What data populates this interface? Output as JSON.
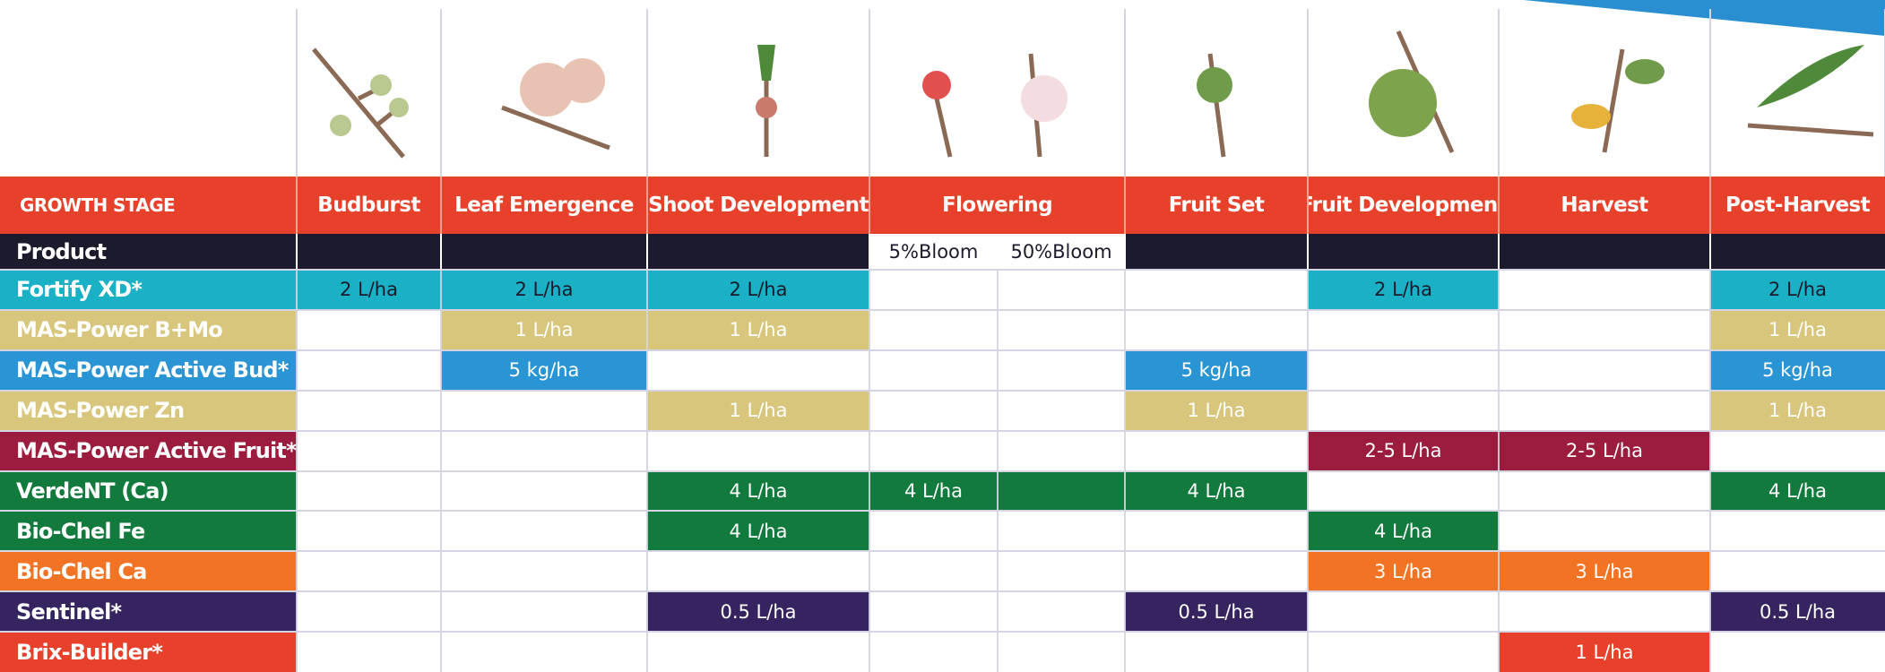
{
  "table": {
    "stage_header": "GROWTH STAGE",
    "stages": [
      "Budburst",
      "Leaf Emergence",
      "Shoot Development",
      "Flowering",
      "Fruit Set",
      "Fruit Development",
      "Harvest",
      "Post-Harvest"
    ],
    "product_header": "Product",
    "flowering_sub": [
      "5%Bloom",
      "50%Bloom"
    ],
    "rows": [
      {
        "name": "Fortify XD*",
        "color": "#1ab1c6",
        "text_color": "#1a1a2a",
        "cells": [
          "2 L/ha",
          "2 L/ha",
          "2 L/ha",
          null,
          null,
          null,
          "2 L/ha",
          null,
          "2 L/ha"
        ],
        "filled": [
          0,
          1,
          2,
          6,
          8
        ]
      },
      {
        "name": "MAS-Power B+Mo",
        "color": "#d7c67c",
        "text_color": "#ffffff",
        "cells": [
          null,
          "1 L/ha",
          "1 L/ha",
          null,
          null,
          null,
          null,
          null,
          "1 L/ha"
        ],
        "filled": [
          1,
          2,
          8
        ]
      },
      {
        "name": "MAS-Power Active Bud*",
        "color": "#2a95d4",
        "text_color": "#ffffff",
        "cells": [
          null,
          "5 kg/ha",
          null,
          null,
          null,
          "5 kg/ha",
          null,
          null,
          "5 kg/ha"
        ],
        "filled": [
          1,
          5,
          8
        ]
      },
      {
        "name": "MAS-Power Zn",
        "color": "#d7c67c",
        "text_color": "#ffffff",
        "cells": [
          null,
          null,
          "1 L/ha",
          null,
          null,
          "1 L/ha",
          null,
          null,
          "1 L/ha"
        ],
        "filled": [
          2,
          5,
          8
        ]
      },
      {
        "name": "MAS-Power Active Fruit*",
        "color": "#9c1c3d",
        "text_color": "#ffffff",
        "cells": [
          null,
          null,
          null,
          null,
          null,
          null,
          "2-5 L/ha",
          "2-5 L/ha",
          null
        ],
        "filled": [
          6,
          7
        ]
      },
      {
        "name": "VerdeNT (Ca)",
        "color": "#137a3d",
        "text_color": "#ffffff",
        "cells": [
          null,
          null,
          "4 L/ha",
          "4 L/ha",
          null,
          "4 L/ha",
          null,
          null,
          "4 L/ha"
        ],
        "filled": [
          2,
          3,
          4,
          5,
          8
        ]
      },
      {
        "name": "Bio-Chel Fe",
        "color": "#137a3d",
        "text_color": "#ffffff",
        "cells": [
          null,
          null,
          "4 L/ha",
          null,
          null,
          null,
          "4 L/ha",
          null,
          null
        ],
        "filled": [
          2,
          6
        ]
      },
      {
        "name": "Bio-Chel Ca",
        "color": "#f17323",
        "text_color": "#ffffff",
        "cells": [
          null,
          null,
          null,
          null,
          null,
          null,
          "3 L/ha",
          "3 L/ha",
          null
        ],
        "filled": [
          6,
          7
        ]
      },
      {
        "name": "Sentinel*",
        "color": "#35245f",
        "text_color": "#ffffff",
        "cells": [
          null,
          null,
          "0.5 L/ha",
          null,
          null,
          "0.5 L/ha",
          null,
          null,
          "0.5 L/ha"
        ],
        "filled": [
          2,
          5,
          8
        ]
      },
      {
        "name": "Brix-Builder*",
        "color": "#e8412b",
        "text_color": "#ffffff",
        "cells": [
          null,
          null,
          null,
          null,
          null,
          null,
          null,
          "1 L/ha",
          null
        ],
        "filled": [
          7
        ]
      }
    ]
  }
}
